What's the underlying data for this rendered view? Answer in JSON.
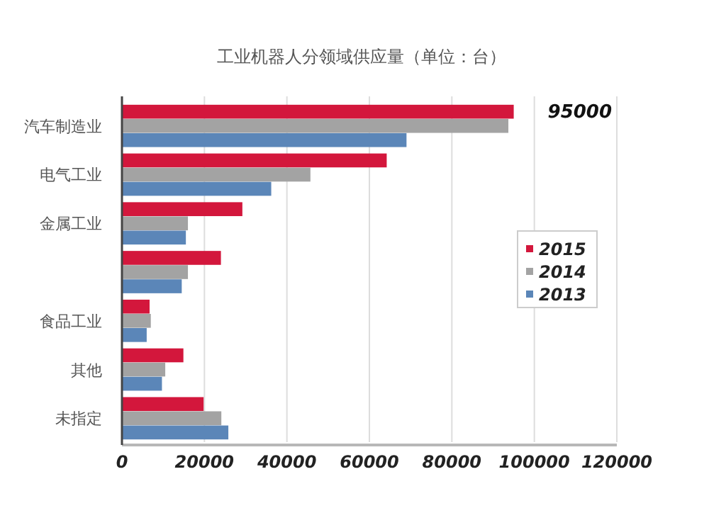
{
  "chart_data": {
    "type": "bar",
    "orientation": "horizontal",
    "title": "工业机器人分领域供应量（单位：台）",
    "categories": [
      "汽车制造业",
      "电气工业",
      "金属工业",
      null,
      "食品工业",
      "其他",
      "未指定"
    ],
    "series": [
      {
        "name": "2015",
        "color": "#d3173c",
        "values": [
          95000,
          64200,
          29200,
          24000,
          6700,
          14900,
          19800
        ],
        "value_labels": [
          "95000",
          null,
          null,
          null,
          null,
          null,
          null
        ]
      },
      {
        "name": "2014",
        "color": "#a3a3a3",
        "values": [
          93700,
          45700,
          16000,
          16000,
          7000,
          10500,
          24100
        ]
      },
      {
        "name": "2013",
        "color": "#5b86b8",
        "values": [
          69000,
          36200,
          15500,
          14500,
          6000,
          9700,
          25800
        ]
      }
    ],
    "xlim": [
      0,
      120000
    ],
    "xticks": [
      0,
      20000,
      40000,
      60000,
      80000,
      100000,
      120000
    ],
    "grid": "x",
    "legend": "bottom right"
  }
}
